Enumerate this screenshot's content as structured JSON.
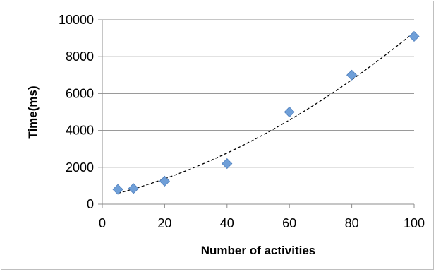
{
  "chart_data": {
    "type": "scatter",
    "title": "",
    "xlabel": "Number of activities",
    "ylabel": "Time(ms)",
    "xlim": [
      0,
      100
    ],
    "ylim": [
      0,
      10000
    ],
    "x_ticks": [
      "0",
      "20",
      "40",
      "60",
      "80",
      "100"
    ],
    "y_ticks": [
      "0",
      "2000",
      "4000",
      "6000",
      "8000",
      "10000"
    ],
    "grid": "horizontal",
    "legend": "none",
    "series": [
      {
        "x": [
          5,
          10,
          20,
          40,
          60,
          80,
          100
        ],
        "y": [
          800,
          850,
          1250,
          2200,
          5000,
          7000,
          9100
        ],
        "marker": "diamond",
        "color": "#6f9fd8"
      }
    ],
    "trendline": {
      "type": "polynomial",
      "style": "dashed",
      "color": "#000000",
      "x_range": [
        5,
        100
      ]
    }
  }
}
